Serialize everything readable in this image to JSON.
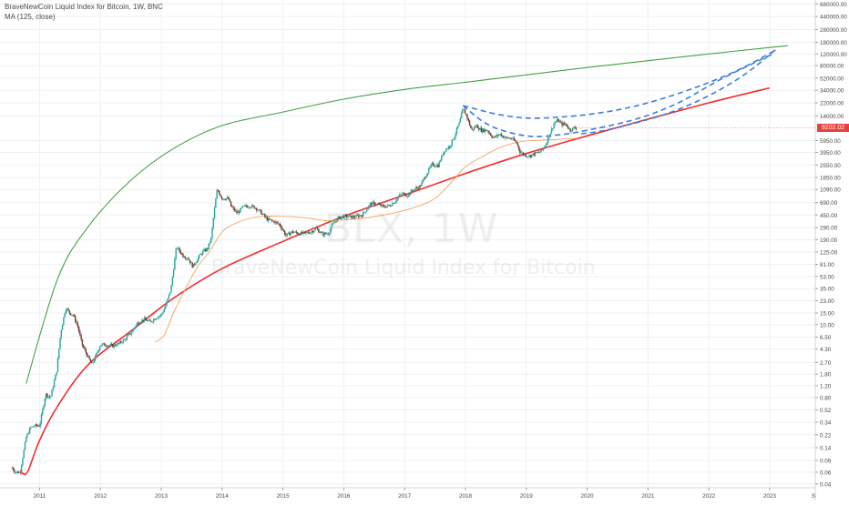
{
  "header": {
    "title": "BraveNewCoin Liquid Index for Bitcoin, 1W, BNC",
    "indicator": "MA (125, close)"
  },
  "watermark": {
    "symbol": "BLX, 1W",
    "name": "BraveNewCoin Liquid Index for Bitcoin"
  },
  "price_axis": {
    "ticks": [
      {
        "label": "680000.00",
        "value": 680000
      },
      {
        "label": "440000.00",
        "value": 440000
      },
      {
        "label": "280000.00",
        "value": 280000
      },
      {
        "label": "180000.00",
        "value": 180000
      },
      {
        "label": "120000.00",
        "value": 120000
      },
      {
        "label": "80000.00",
        "value": 80000
      },
      {
        "label": "52000.00",
        "value": 52000
      },
      {
        "label": "34000.00",
        "value": 34000
      },
      {
        "label": "22000.00",
        "value": 22000
      },
      {
        "label": "14000.00",
        "value": 14000
      },
      {
        "label": "5950.00",
        "value": 5950
      },
      {
        "label": "3950.00",
        "value": 3950
      },
      {
        "label": "2550.00",
        "value": 2550
      },
      {
        "label": "1650.00",
        "value": 1650
      },
      {
        "label": "1090.00",
        "value": 1090
      },
      {
        "label": "690.00",
        "value": 690
      },
      {
        "label": "450.00",
        "value": 450
      },
      {
        "label": "290.00",
        "value": 290
      },
      {
        "label": "190.00",
        "value": 190
      },
      {
        "label": "125.00",
        "value": 125
      },
      {
        "label": "81.00",
        "value": 81
      },
      {
        "label": "53.00",
        "value": 53
      },
      {
        "label": "35.00",
        "value": 35
      },
      {
        "label": "23.00",
        "value": 23
      },
      {
        "label": "15.00",
        "value": 15
      },
      {
        "label": "10.00",
        "value": 10
      },
      {
        "label": "6.50",
        "value": 6.5
      },
      {
        "label": "4.30",
        "value": 4.3
      },
      {
        "label": "2.70",
        "value": 2.7
      },
      {
        "label": "1.80",
        "value": 1.8
      },
      {
        "label": "1.20",
        "value": 1.2
      },
      {
        "label": "0.80",
        "value": 0.8
      },
      {
        "label": "0.52",
        "value": 0.52
      },
      {
        "label": "0.34",
        "value": 0.34
      },
      {
        "label": "0.22",
        "value": 0.22
      },
      {
        "label": "0.14",
        "value": 0.14
      },
      {
        "label": "0.09",
        "value": 0.09
      },
      {
        "label": "0.06",
        "value": 0.06
      },
      {
        "label": "0.04",
        "value": 0.04
      }
    ],
    "last_price_label": "9202.02",
    "last_price": 9202
  },
  "chart_data": {
    "type": "candlestick",
    "title": "BraveNewCoin Liquid Index for Bitcoin, 1W, BNC",
    "y_scale": "log",
    "ylim": [
      0.035,
      780000
    ],
    "xlim": [
      2010.35,
      2023.75
    ],
    "x_ticks": [
      "2011",
      "2012",
      "2013",
      "2014",
      "2015",
      "2016",
      "2017",
      "2018",
      "2019",
      "2020",
      "2021",
      "2022",
      "2023"
    ],
    "x_tick_values": [
      2011,
      2012,
      2013,
      2014,
      2015,
      2016,
      2017,
      2018,
      2019,
      2020,
      2021,
      2022,
      2023
    ],
    "x_edge_label": "S",
    "price_path": [
      [
        2010.55,
        0.07
      ],
      [
        2010.6,
        0.06
      ],
      [
        2010.68,
        0.06
      ],
      [
        2010.78,
        0.2
      ],
      [
        2010.85,
        0.28
      ],
      [
        2010.92,
        0.3
      ],
      [
        2011.0,
        0.3
      ],
      [
        2011.1,
        0.9
      ],
      [
        2011.18,
        0.8
      ],
      [
        2011.28,
        2.0
      ],
      [
        2011.35,
        8.0
      ],
      [
        2011.43,
        18.0
      ],
      [
        2011.5,
        15.0
      ],
      [
        2011.55,
        14.0
      ],
      [
        2011.62,
        10.0
      ],
      [
        2011.7,
        5.0
      ],
      [
        2011.78,
        3.5
      ],
      [
        2011.86,
        2.5
      ],
      [
        2011.93,
        3.5
      ],
      [
        2012.0,
        5.0
      ],
      [
        2012.1,
        5.0
      ],
      [
        2012.2,
        4.8
      ],
      [
        2012.3,
        5.2
      ],
      [
        2012.4,
        6.0
      ],
      [
        2012.5,
        7.5
      ],
      [
        2012.62,
        11.0
      ],
      [
        2012.72,
        12.0
      ],
      [
        2012.82,
        11.0
      ],
      [
        2012.92,
        13.0
      ],
      [
        2013.0,
        14.0
      ],
      [
        2013.08,
        20.0
      ],
      [
        2013.16,
        35.0
      ],
      [
        2013.25,
        150.0
      ],
      [
        2013.3,
        130.0
      ],
      [
        2013.36,
        110.0
      ],
      [
        2013.44,
        100.0
      ],
      [
        2013.52,
        75.0
      ],
      [
        2013.6,
        100.0
      ],
      [
        2013.68,
        125.0
      ],
      [
        2013.76,
        140.0
      ],
      [
        2013.82,
        200.0
      ],
      [
        2013.88,
        600.0
      ],
      [
        2013.92,
        1100.0
      ],
      [
        2014.0,
        800.0
      ],
      [
        2014.1,
        800.0
      ],
      [
        2014.15,
        600.0
      ],
      [
        2014.25,
        480.0
      ],
      [
        2014.35,
        600.0
      ],
      [
        2014.45,
        620.0
      ],
      [
        2014.55,
        580.0
      ],
      [
        2014.65,
        480.0
      ],
      [
        2014.75,
        380.0
      ],
      [
        2014.85,
        360.0
      ],
      [
        2014.95,
        320.0
      ],
      [
        2015.05,
        220.0
      ],
      [
        2015.15,
        250.0
      ],
      [
        2015.25,
        240.0
      ],
      [
        2015.35,
        235.0
      ],
      [
        2015.45,
        250.0
      ],
      [
        2015.55,
        280.0
      ],
      [
        2015.65,
        230.0
      ],
      [
        2015.75,
        240.0
      ],
      [
        2015.82,
        330.0
      ],
      [
        2015.9,
        400.0
      ],
      [
        2016.0,
        430.0
      ],
      [
        2016.15,
        420.0
      ],
      [
        2016.3,
        450.0
      ],
      [
        2016.45,
        680.0
      ],
      [
        2016.55,
        650.0
      ],
      [
        2016.65,
        600.0
      ],
      [
        2016.75,
        620.0
      ],
      [
        2016.85,
        740.0
      ],
      [
        2016.95,
        950.0
      ],
      [
        2017.05,
        900.0
      ],
      [
        2017.15,
        1100.0
      ],
      [
        2017.25,
        1200.0
      ],
      [
        2017.35,
        1800.0
      ],
      [
        2017.45,
        2600.0
      ],
      [
        2017.55,
        2500.0
      ],
      [
        2017.65,
        4200.0
      ],
      [
        2017.75,
        5000.0
      ],
      [
        2017.82,
        7000.0
      ],
      [
        2017.9,
        11000.0
      ],
      [
        2017.96,
        18000.0
      ],
      [
        2018.02,
        14000.0
      ],
      [
        2018.1,
        8500.0
      ],
      [
        2018.18,
        10000.0
      ],
      [
        2018.26,
        8500.0
      ],
      [
        2018.36,
        8500.0
      ],
      [
        2018.46,
        6500.0
      ],
      [
        2018.56,
        7500.0
      ],
      [
        2018.66,
        6500.0
      ],
      [
        2018.76,
        6400.0
      ],
      [
        2018.84,
        5500.0
      ],
      [
        2018.9,
        4000.0
      ],
      [
        2018.97,
        3600.0
      ],
      [
        2019.05,
        3500.0
      ],
      [
        2019.15,
        3800.0
      ],
      [
        2019.25,
        4100.0
      ],
      [
        2019.32,
        5300.0
      ],
      [
        2019.4,
        8000.0
      ],
      [
        2019.46,
        11000.0
      ],
      [
        2019.52,
        12000.0
      ],
      [
        2019.58,
        10500.0
      ],
      [
        2019.65,
        10500.0
      ],
      [
        2019.72,
        8500.0
      ],
      [
        2019.78,
        9200.0
      ],
      [
        2019.83,
        9202.0
      ]
    ],
    "series": [
      {
        "name": "MA (125, close)",
        "x": [
          2012.9,
          2013.05,
          2013.2,
          2013.4,
          2013.6,
          2013.8,
          2014.0,
          2014.2,
          2014.45,
          2014.7,
          2014.95,
          2015.2,
          2015.45,
          2015.7,
          2016.0,
          2016.3,
          2016.6,
          2016.9,
          2017.2,
          2017.5,
          2017.8,
          2018.0,
          2018.3,
          2018.6,
          2018.9,
          2019.2,
          2019.5,
          2019.8
        ],
        "values": [
          5.5,
          7,
          15,
          35,
          75,
          130,
          250,
          330,
          400,
          430,
          430,
          420,
          400,
          370,
          380,
          400,
          440,
          500,
          600,
          800,
          1500,
          2400,
          3500,
          4800,
          5700,
          6000,
          6200,
          6400
        ]
      }
    ],
    "annotations": [
      {
        "type": "curve",
        "name": "upper green curve",
        "color": "#43a047",
        "x": [
          2010.78,
          2011.3,
          2011.8,
          2012.5,
          2013.2,
          2014.0,
          2015.0,
          2016.0,
          2017.0,
          2018.0,
          2019.0,
          2020.0,
          2021.0,
          2022.0,
          2023.0,
          2023.3
        ],
        "values": [
          1.3,
          50,
          300,
          1500,
          4500,
          10000,
          16000,
          25000,
          35000,
          45000,
          58000,
          75000,
          95000,
          120000,
          150000,
          160000
        ]
      },
      {
        "type": "curve",
        "name": "lower red curve",
        "color": "#f22c2c",
        "x": [
          2010.7,
          2010.8,
          2011.0,
          2011.3,
          2011.8,
          2012.5,
          2013.2,
          2014.0,
          2015.0,
          2016.0,
          2017.0,
          2018.0,
          2019.0,
          2020.0,
          2021.0,
          2022.0,
          2023.0
        ],
        "values": [
          0.06,
          0.06,
          0.18,
          0.6,
          2.5,
          8,
          25,
          70,
          180,
          430,
          900,
          1900,
          3800,
          7000,
          12500,
          22000,
          37000
        ]
      },
      {
        "type": "dashed-projection",
        "name": "upper dashed projection",
        "color": "#3b7ddd",
        "x": [
          2017.96,
          2018.5,
          2019.0,
          2019.6,
          2020.3,
          2021.0,
          2021.8,
          2022.5,
          2023.05
        ],
        "values": [
          20000,
          15000,
          13000,
          13500,
          16000,
          22000,
          38000,
          70000,
          130000
        ]
      },
      {
        "type": "dashed-projection",
        "name": "middle dashed projection",
        "color": "#3b7ddd",
        "x": [
          2017.96,
          2018.4,
          2019.0,
          2019.5,
          2020.0,
          2020.8,
          2021.5,
          2022.2,
          2023.05
        ],
        "values": [
          20000,
          10000,
          7000,
          7200,
          8500,
          12500,
          22000,
          50000,
          120000
        ]
      },
      {
        "type": "dashed-projection",
        "name": "lower dashed projection",
        "color": "#3b7ddd",
        "x": [
          2019.9,
          2020.3,
          2020.8,
          2021.3,
          2021.8,
          2022.3,
          2022.7,
          2023.1
        ],
        "values": [
          7500,
          8500,
          11000,
          15000,
          23000,
          40000,
          70000,
          140000
        ]
      }
    ],
    "grid": true,
    "legend": "top-left"
  },
  "colors": {
    "up_candle": "#26a69a",
    "down_candle": "#6b3a2a",
    "ma": "#f7a35c",
    "green_curve": "#43a047",
    "red_curve": "#f22c2c",
    "projection": "#3b7ddd",
    "price_label": "#e8413b",
    "grid": "#eef0f3",
    "axis_text": "#4a4a4a"
  }
}
